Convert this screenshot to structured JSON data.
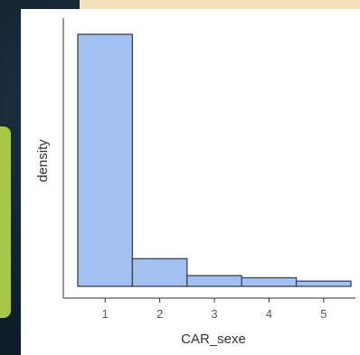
{
  "colors": {
    "bar_fill": "#a3c1f0",
    "bar_stroke": "#3c4250",
    "axis": "#333333"
  },
  "chart_data": {
    "type": "bar",
    "categories": [
      "1",
      "2",
      "3",
      "4",
      "5"
    ],
    "values": [
      0.82,
      0.09,
      0.035,
      0.028,
      0.017
    ],
    "xlabel": "CAR_sexe",
    "ylabel": "density",
    "ylim": [
      0,
      0.85
    ],
    "show_y_ticks": false,
    "grid": false,
    "legend": "none"
  }
}
